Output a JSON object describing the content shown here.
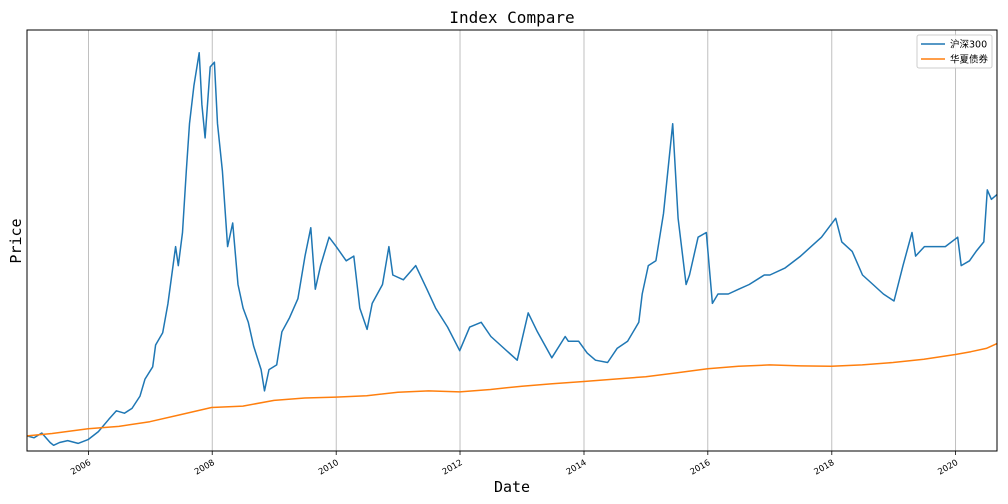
{
  "chart_data": {
    "type": "line",
    "title": "Index Compare",
    "xlabel": "Date",
    "ylabel": "Price",
    "x_range": [
      "2005-01-04",
      "2020-09-01"
    ],
    "x_ticks": [
      "2006",
      "2008",
      "2010",
      "2012",
      "2014",
      "2016",
      "2018",
      "2020"
    ],
    "y_range": [
      0.68,
      9.58
    ],
    "y_ticks_visible": false,
    "grid": "x-only",
    "legend": "top-right",
    "series": [
      {
        "name": "沪深300",
        "color": "#1f77b4",
        "points": [
          [
            "2005-01-04",
            1.0
          ],
          [
            "2005-02-15",
            0.96
          ],
          [
            "2005-04-01",
            1.06
          ],
          [
            "2005-05-20",
            0.86
          ],
          [
            "2005-06-10",
            0.8
          ],
          [
            "2005-07-15",
            0.86
          ],
          [
            "2005-09-01",
            0.9
          ],
          [
            "2005-11-01",
            0.84
          ],
          [
            "2005-12-30",
            0.92
          ],
          [
            "2006-03-01",
            1.09
          ],
          [
            "2006-05-01",
            1.35
          ],
          [
            "2006-06-15",
            1.53
          ],
          [
            "2006-08-01",
            1.48
          ],
          [
            "2006-09-15",
            1.58
          ],
          [
            "2006-11-01",
            1.84
          ],
          [
            "2006-12-01",
            2.2
          ],
          [
            "2007-01-15",
            2.46
          ],
          [
            "2007-02-01",
            2.92
          ],
          [
            "2007-03-15",
            3.18
          ],
          [
            "2007-04-15",
            3.79
          ],
          [
            "2007-05-30",
            5.0
          ],
          [
            "2007-06-15",
            4.6
          ],
          [
            "2007-07-10",
            5.3
          ],
          [
            "2007-08-01",
            6.6
          ],
          [
            "2007-08-20",
            7.6
          ],
          [
            "2007-09-15",
            8.4
          ],
          [
            "2007-10-16",
            9.1
          ],
          [
            "2007-11-01",
            8.0
          ],
          [
            "2007-11-20",
            7.3
          ],
          [
            "2007-12-20",
            8.8
          ],
          [
            "2008-01-14",
            8.9
          ],
          [
            "2008-02-01",
            7.6
          ],
          [
            "2008-03-01",
            6.6
          ],
          [
            "2008-04-01",
            5.0
          ],
          [
            "2008-05-01",
            5.5
          ],
          [
            "2008-06-01",
            4.2
          ],
          [
            "2008-07-01",
            3.7
          ],
          [
            "2008-08-01",
            3.4
          ],
          [
            "2008-09-01",
            2.9
          ],
          [
            "2008-10-15",
            2.4
          ],
          [
            "2008-11-04",
            1.95
          ],
          [
            "2008-12-01",
            2.4
          ],
          [
            "2009-01-15",
            2.5
          ],
          [
            "2009-02-15",
            3.2
          ],
          [
            "2009-04-01",
            3.5
          ],
          [
            "2009-05-20",
            3.9
          ],
          [
            "2009-07-01",
            4.8
          ],
          [
            "2009-08-04",
            5.4
          ],
          [
            "2009-08-31",
            4.1
          ],
          [
            "2009-10-01",
            4.6
          ],
          [
            "2009-11-20",
            5.2
          ],
          [
            "2010-01-01",
            5.0
          ],
          [
            "2010-03-01",
            4.7
          ],
          [
            "2010-04-15",
            4.8
          ],
          [
            "2010-05-20",
            3.7
          ],
          [
            "2010-07-02",
            3.25
          ],
          [
            "2010-08-01",
            3.8
          ],
          [
            "2010-10-01",
            4.2
          ],
          [
            "2010-11-08",
            5.0
          ],
          [
            "2010-12-01",
            4.4
          ],
          [
            "2011-02-01",
            4.3
          ],
          [
            "2011-04-15",
            4.6
          ],
          [
            "2011-06-20",
            4.1
          ],
          [
            "2011-08-10",
            3.7
          ],
          [
            "2011-10-20",
            3.3
          ],
          [
            "2011-12-30",
            2.8
          ],
          [
            "2012-02-27",
            3.3
          ],
          [
            "2012-05-05",
            3.4
          ],
          [
            "2012-07-01",
            3.1
          ],
          [
            "2012-09-01",
            2.9
          ],
          [
            "2012-12-03",
            2.6
          ],
          [
            "2013-02-06",
            3.6
          ],
          [
            "2013-04-01",
            3.2
          ],
          [
            "2013-06-25",
            2.65
          ],
          [
            "2013-09-12",
            3.1
          ],
          [
            "2013-10-01",
            3.0
          ],
          [
            "2013-12-01",
            3.0
          ],
          [
            "2014-01-20",
            2.75
          ],
          [
            "2014-03-10",
            2.6
          ],
          [
            "2014-05-20",
            2.55
          ],
          [
            "2014-07-15",
            2.85
          ],
          [
            "2014-09-15",
            3.0
          ],
          [
            "2014-11-20",
            3.4
          ],
          [
            "2014-12-10",
            4.0
          ],
          [
            "2015-01-15",
            4.6
          ],
          [
            "2015-03-01",
            4.7
          ],
          [
            "2015-04-15",
            5.7
          ],
          [
            "2015-06-08",
            7.6
          ],
          [
            "2015-07-10",
            5.6
          ],
          [
            "2015-08-26",
            4.2
          ],
          [
            "2015-09-15",
            4.4
          ],
          [
            "2015-11-05",
            5.2
          ],
          [
            "2015-12-23",
            5.3
          ],
          [
            "2016-01-28",
            3.8
          ],
          [
            "2016-03-01",
            4.0
          ],
          [
            "2016-05-01",
            4.0
          ],
          [
            "2016-07-01",
            4.1
          ],
          [
            "2016-09-01",
            4.2
          ],
          [
            "2016-11-29",
            4.4
          ],
          [
            "2017-01-01",
            4.4
          ],
          [
            "2017-04-01",
            4.55
          ],
          [
            "2017-07-01",
            4.8
          ],
          [
            "2017-09-01",
            5.0
          ],
          [
            "2017-11-01",
            5.2
          ],
          [
            "2018-01-24",
            5.6
          ],
          [
            "2018-03-01",
            5.1
          ],
          [
            "2018-05-01",
            4.9
          ],
          [
            "2018-07-01",
            4.4
          ],
          [
            "2018-09-01",
            4.2
          ],
          [
            "2018-11-01",
            4.0
          ],
          [
            "2019-01-03",
            3.85
          ],
          [
            "2019-02-25",
            4.6
          ],
          [
            "2019-04-19",
            5.3
          ],
          [
            "2019-05-10",
            4.8
          ],
          [
            "2019-07-01",
            5.0
          ],
          [
            "2019-09-01",
            5.0
          ],
          [
            "2019-11-01",
            5.0
          ],
          [
            "2020-01-13",
            5.2
          ],
          [
            "2020-02-03",
            4.6
          ],
          [
            "2020-03-23",
            4.7
          ],
          [
            "2020-05-01",
            4.9
          ],
          [
            "2020-06-15",
            5.1
          ],
          [
            "2020-07-06",
            6.2
          ],
          [
            "2020-07-30",
            6.0
          ],
          [
            "2020-09-01",
            6.1
          ]
        ]
      },
      {
        "name": "华夏债券",
        "color": "#ff7f0e",
        "points": [
          [
            "2005-01-04",
            1.0
          ],
          [
            "2005-06-01",
            1.05
          ],
          [
            "2005-12-30",
            1.15
          ],
          [
            "2006-06-30",
            1.2
          ],
          [
            "2006-12-29",
            1.3
          ],
          [
            "2007-06-29",
            1.45
          ],
          [
            "2007-12-28",
            1.6
          ],
          [
            "2008-06-30",
            1.63
          ],
          [
            "2008-12-31",
            1.75
          ],
          [
            "2009-06-30",
            1.8
          ],
          [
            "2009-12-31",
            1.82
          ],
          [
            "2010-06-30",
            1.85
          ],
          [
            "2010-12-31",
            1.92
          ],
          [
            "2011-06-30",
            1.95
          ],
          [
            "2011-12-30",
            1.93
          ],
          [
            "2012-06-29",
            1.98
          ],
          [
            "2012-12-31",
            2.05
          ],
          [
            "2013-06-28",
            2.1
          ],
          [
            "2013-12-31",
            2.15
          ],
          [
            "2014-06-30",
            2.2
          ],
          [
            "2014-12-31",
            2.25
          ],
          [
            "2015-06-30",
            2.33
          ],
          [
            "2015-12-31",
            2.42
          ],
          [
            "2016-06-30",
            2.47
          ],
          [
            "2016-12-30",
            2.5
          ],
          [
            "2017-06-30",
            2.48
          ],
          [
            "2017-12-29",
            2.47
          ],
          [
            "2018-06-29",
            2.5
          ],
          [
            "2018-12-28",
            2.55
          ],
          [
            "2019-06-28",
            2.62
          ],
          [
            "2019-12-31",
            2.72
          ],
          [
            "2020-03-31",
            2.78
          ],
          [
            "2020-06-30",
            2.85
          ],
          [
            "2020-09-01",
            2.95
          ]
        ]
      }
    ]
  }
}
